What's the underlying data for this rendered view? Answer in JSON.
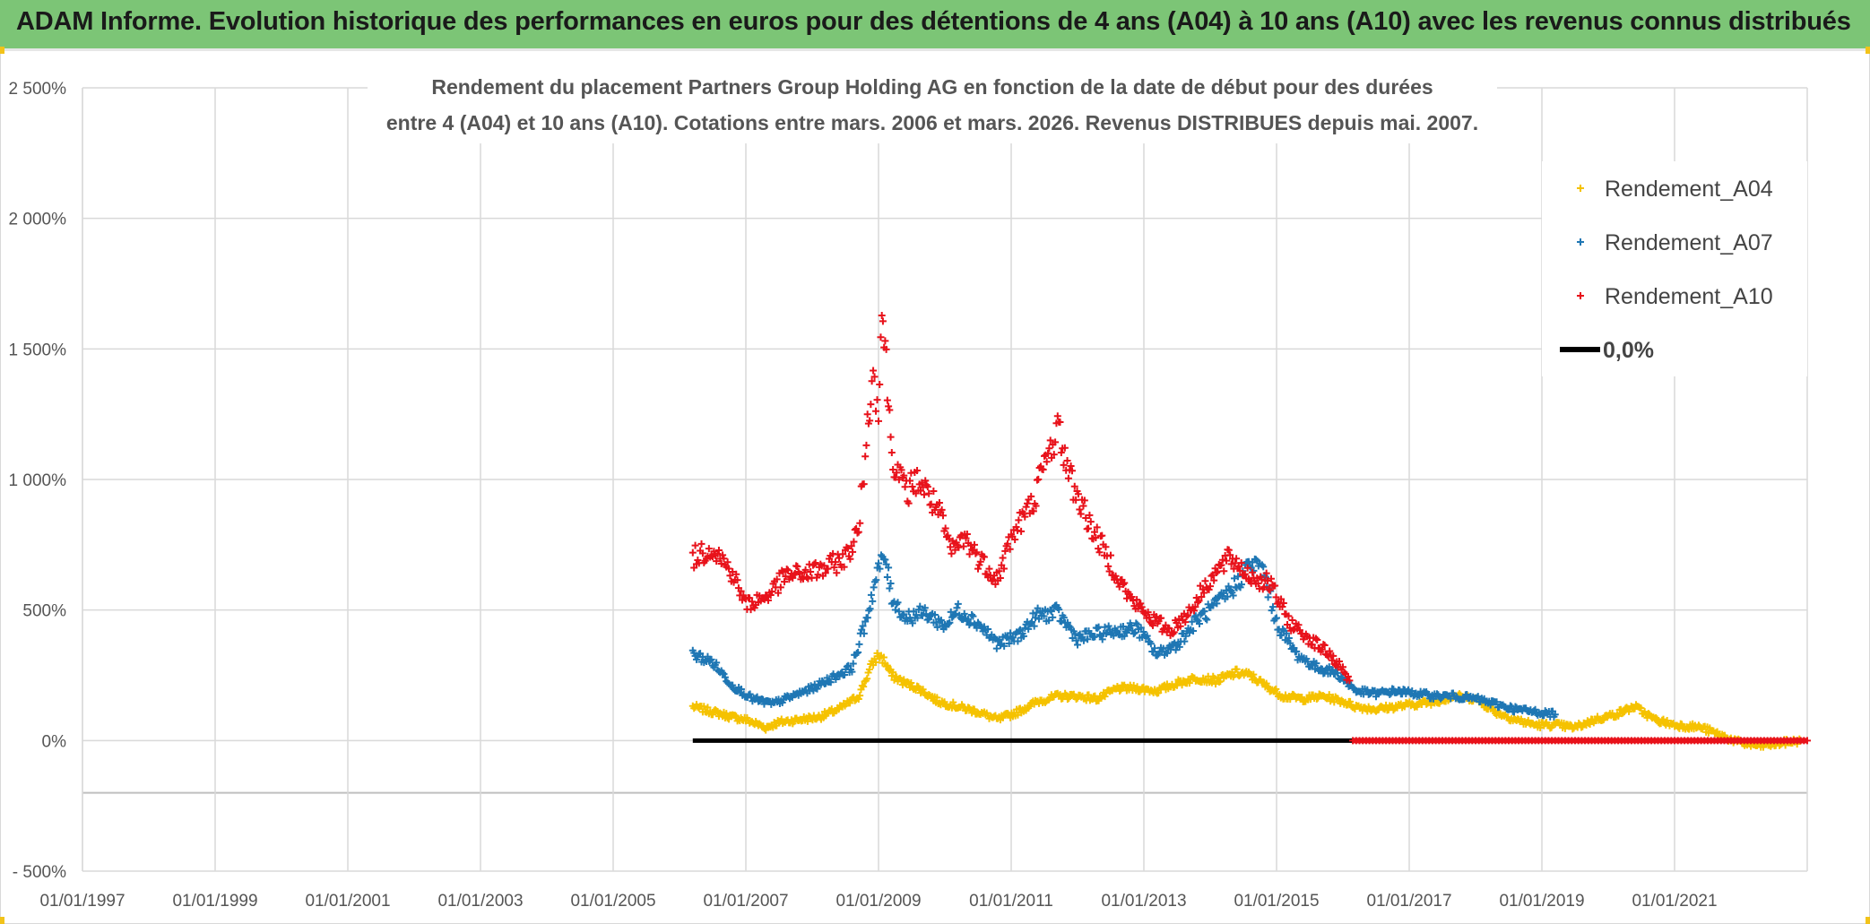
{
  "header": {
    "title": "ADAM Informe. Evolution historique des performances en euros pour des détentions de 4 ans (A04) à 10 ans (A10) avec les revenus connus distribués"
  },
  "chart_data": {
    "type": "scatter",
    "title_line1": "Rendement du placement Partners Group Holding AG en fonction de la date de début pour des durées",
    "title_line2": "entre 4 (A04) et 10 ans (A10). Cotations entre mars. 2006 et mars. 2026. Revenus DISTRIBUES depuis mai. 2007.",
    "xlim": [
      1997.0,
      2023.0
    ],
    "ylim": [
      -500,
      2500
    ],
    "y_ticks": [
      -500,
      0,
      500,
      1000,
      1500,
      2000,
      2500
    ],
    "y_tick_labels": [
      "- 500%",
      "0%",
      "500%",
      "1 000%",
      "1 500%",
      "2 000%",
      "2 500%"
    ],
    "x_ticks": [
      1997,
      1999,
      2001,
      2003,
      2005,
      2007,
      2009,
      2011,
      2013,
      2015,
      2017,
      2019,
      2021
    ],
    "x_tick_labels": [
      "01/01/1997",
      "01/01/1999",
      "01/01/2001",
      "01/01/2003",
      "01/01/2005",
      "01/01/2007",
      "01/01/2009",
      "01/01/2011",
      "01/01/2013",
      "01/01/2015",
      "01/01/2017",
      "01/01/2019",
      "01/01/2021"
    ],
    "extra_hline": -200,
    "legend_position": "top-right",
    "series": [
      {
        "name": "Rendement_A04",
        "color": "#f5c200",
        "marker": "+",
        "points": [
          [
            2006.2,
            130
          ],
          [
            2006.5,
            110
          ],
          [
            2006.8,
            90
          ],
          [
            2007.0,
            80
          ],
          [
            2007.3,
            50
          ],
          [
            2007.5,
            70
          ],
          [
            2007.8,
            80
          ],
          [
            2008.1,
            90
          ],
          [
            2008.4,
            120
          ],
          [
            2008.7,
            170
          ],
          [
            2008.9,
            290
          ],
          [
            2009.0,
            330
          ],
          [
            2009.1,
            300
          ],
          [
            2009.2,
            250
          ],
          [
            2009.4,
            220
          ],
          [
            2009.6,
            200
          ],
          [
            2009.9,
            150
          ],
          [
            2010.2,
            130
          ],
          [
            2010.5,
            110
          ],
          [
            2010.8,
            80
          ],
          [
            2011.1,
            110
          ],
          [
            2011.4,
            150
          ],
          [
            2011.7,
            170
          ],
          [
            2012.0,
            170
          ],
          [
            2012.3,
            160
          ],
          [
            2012.6,
            200
          ],
          [
            2012.9,
            200
          ],
          [
            2013.2,
            190
          ],
          [
            2013.5,
            220
          ],
          [
            2013.8,
            240
          ],
          [
            2014.1,
            230
          ],
          [
            2014.4,
            260
          ],
          [
            2014.6,
            250
          ],
          [
            2014.9,
            200
          ],
          [
            2015.1,
            170
          ],
          [
            2015.4,
            160
          ],
          [
            2015.7,
            170
          ],
          [
            2016.0,
            150
          ],
          [
            2016.2,
            130
          ],
          [
            2016.5,
            120
          ],
          [
            2016.8,
            130
          ],
          [
            2017.1,
            140
          ],
          [
            2017.4,
            150
          ],
          [
            2017.7,
            170
          ],
          [
            2018.0,
            160
          ],
          [
            2018.3,
            110
          ],
          [
            2018.6,
            80
          ],
          [
            2018.9,
            60
          ],
          [
            2019.2,
            60
          ],
          [
            2019.5,
            50
          ],
          [
            2019.8,
            80
          ],
          [
            2020.1,
            100
          ],
          [
            2020.4,
            130
          ],
          [
            2020.7,
            80
          ],
          [
            2021.0,
            60
          ],
          [
            2021.4,
            50
          ],
          [
            2021.7,
            20
          ],
          [
            2022.0,
            -10
          ],
          [
            2022.3,
            -20
          ],
          [
            2022.6,
            -10
          ],
          [
            2022.9,
            0
          ]
        ]
      },
      {
        "name": "Rendement_A07",
        "color": "#1f77b4",
        "marker": "+",
        "points": [
          [
            2006.2,
            330
          ],
          [
            2006.5,
            300
          ],
          [
            2006.8,
            210
          ],
          [
            2007.1,
            160
          ],
          [
            2007.4,
            140
          ],
          [
            2007.7,
            170
          ],
          [
            2008.0,
            200
          ],
          [
            2008.3,
            240
          ],
          [
            2008.6,
            280
          ],
          [
            2008.8,
            450
          ],
          [
            2009.0,
            660
          ],
          [
            2009.1,
            700
          ],
          [
            2009.2,
            550
          ],
          [
            2009.4,
            470
          ],
          [
            2009.7,
            490
          ],
          [
            2010.0,
            440
          ],
          [
            2010.2,
            500
          ],
          [
            2010.5,
            450
          ],
          [
            2010.8,
            370
          ],
          [
            2011.1,
            400
          ],
          [
            2011.4,
            480
          ],
          [
            2011.7,
            490
          ],
          [
            2012.0,
            390
          ],
          [
            2012.3,
            410
          ],
          [
            2012.6,
            420
          ],
          [
            2012.9,
            430
          ],
          [
            2013.2,
            330
          ],
          [
            2013.5,
            370
          ],
          [
            2013.8,
            460
          ],
          [
            2014.1,
            520
          ],
          [
            2014.4,
            600
          ],
          [
            2014.6,
            680
          ],
          [
            2014.8,
            650
          ],
          [
            2015.0,
            450
          ],
          [
            2015.3,
            330
          ],
          [
            2015.6,
            280
          ],
          [
            2015.9,
            260
          ],
          [
            2016.2,
            190
          ],
          [
            2016.5,
            180
          ],
          [
            2016.8,
            190
          ],
          [
            2017.1,
            180
          ],
          [
            2017.4,
            170
          ],
          [
            2017.7,
            170
          ],
          [
            2018.0,
            160
          ],
          [
            2018.3,
            140
          ],
          [
            2018.6,
            120
          ],
          [
            2018.9,
            110
          ],
          [
            2019.2,
            100
          ]
        ]
      },
      {
        "name": "Rendement_A10",
        "color": "#e8121b",
        "marker": "+",
        "points": [
          [
            2006.2,
            700
          ],
          [
            2006.5,
            740
          ],
          [
            2006.8,
            640
          ],
          [
            2007.0,
            520
          ],
          [
            2007.3,
            550
          ],
          [
            2007.6,
            630
          ],
          [
            2007.9,
            640
          ],
          [
            2008.2,
            660
          ],
          [
            2008.5,
            700
          ],
          [
            2008.7,
            800
          ],
          [
            2008.8,
            1100
          ],
          [
            2008.9,
            1400
          ],
          [
            2009.0,
            1300
          ],
          [
            2009.05,
            1650
          ],
          [
            2009.1,
            1500
          ],
          [
            2009.2,
            1100
          ],
          [
            2009.4,
            950
          ],
          [
            2009.6,
            1000
          ],
          [
            2009.9,
            880
          ],
          [
            2010.1,
            720
          ],
          [
            2010.3,
            780
          ],
          [
            2010.5,
            700
          ],
          [
            2010.8,
            620
          ],
          [
            2011.0,
            780
          ],
          [
            2011.3,
            900
          ],
          [
            2011.5,
            1050
          ],
          [
            2011.7,
            1200
          ],
          [
            2011.9,
            1000
          ],
          [
            2012.2,
            820
          ],
          [
            2012.5,
            680
          ],
          [
            2012.8,
            540
          ],
          [
            2013.1,
            470
          ],
          [
            2013.4,
            420
          ],
          [
            2013.7,
            500
          ],
          [
            2014.0,
            620
          ],
          [
            2014.3,
            700
          ],
          [
            2014.6,
            630
          ],
          [
            2014.9,
            600
          ],
          [
            2015.2,
            450
          ],
          [
            2015.5,
            390
          ],
          [
            2015.8,
            330
          ],
          [
            2016.0,
            270
          ],
          [
            2016.1,
            230
          ]
        ]
      }
    ],
    "red_zero_segment": [
      2016.15,
      2023.0
    ],
    "black_zero_segment": [
      2006.2,
      2016.15
    ],
    "legend": [
      {
        "label": "Rendement_A04",
        "color": "#f5c200",
        "kind": "marker"
      },
      {
        "label": "Rendement_A07",
        "color": "#1f77b4",
        "kind": "marker"
      },
      {
        "label": "Rendement_A10",
        "color": "#e8121b",
        "kind": "marker"
      },
      {
        "label": "0,0%",
        "color": "#000000",
        "kind": "line"
      }
    ]
  }
}
